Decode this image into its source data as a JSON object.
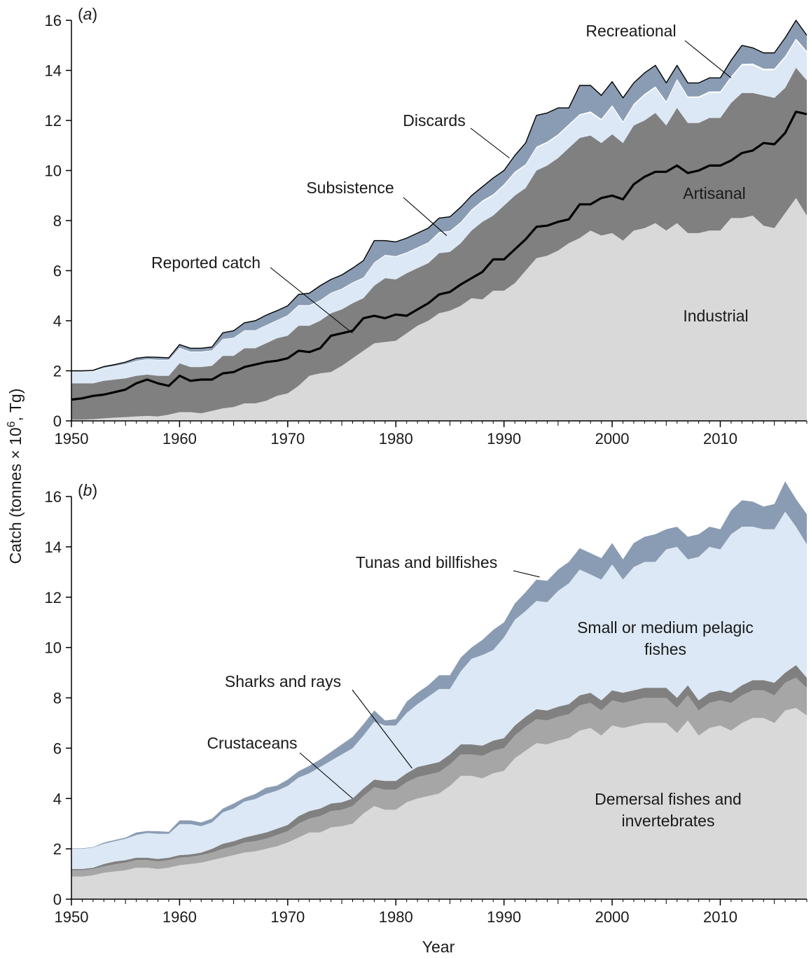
{
  "figure": {
    "ylabel_main": "Catch (tonnes × 10",
    "ylabel_sup": "6",
    "ylabel_tail": ", Tg)",
    "xlabel": "Year"
  },
  "chart_data": [
    {
      "type": "area",
      "stacked": true,
      "panel_open": "(",
      "panel_letter": "a",
      "panel_close": ")",
      "x": [
        1950,
        1951,
        1952,
        1953,
        1954,
        1955,
        1956,
        1957,
        1958,
        1959,
        1960,
        1961,
        1962,
        1963,
        1964,
        1965,
        1966,
        1967,
        1968,
        1969,
        1970,
        1971,
        1972,
        1973,
        1974,
        1975,
        1976,
        1977,
        1978,
        1979,
        1980,
        1981,
        1982,
        1983,
        1984,
        1985,
        1986,
        1987,
        1988,
        1989,
        1990,
        1991,
        1992,
        1993,
        1994,
        1995,
        1996,
        1997,
        1998,
        1999,
        2000,
        2001,
        2002,
        2003,
        2004,
        2005,
        2006,
        2007,
        2008,
        2009,
        2010,
        2011,
        2012,
        2013,
        2014,
        2015,
        2016,
        2017,
        2018
      ],
      "xlim": [
        1950,
        2018
      ],
      "ylim": [
        0,
        16
      ],
      "xticks": [
        1950,
        1960,
        1970,
        1980,
        1990,
        2000,
        2010
      ],
      "yticks": [
        0,
        2,
        4,
        6,
        8,
        10,
        12,
        14,
        16
      ],
      "series": [
        {
          "name": "Industrial",
          "color": "#d9d9d9",
          "values": [
            0.05,
            0.05,
            0.07,
            0.1,
            0.13,
            0.15,
            0.18,
            0.2,
            0.18,
            0.25,
            0.35,
            0.35,
            0.3,
            0.4,
            0.5,
            0.55,
            0.7,
            0.7,
            0.8,
            1.0,
            1.1,
            1.4,
            1.8,
            1.9,
            1.95,
            2.2,
            2.5,
            2.8,
            3.1,
            3.15,
            3.2,
            3.5,
            3.8,
            4.0,
            4.3,
            4.4,
            4.6,
            4.9,
            4.85,
            5.2,
            5.2,
            5.5,
            6.0,
            6.5,
            6.6,
            6.8,
            7.1,
            7.3,
            7.6,
            7.4,
            7.5,
            7.2,
            7.6,
            7.7,
            7.9,
            7.6,
            7.9,
            7.5,
            7.5,
            7.6,
            7.6,
            8.1,
            8.1,
            8.2,
            7.8,
            7.7,
            8.3,
            8.9,
            8.2
          ]
        },
        {
          "name": "Artisanal",
          "color": "#808080",
          "values": [
            1.45,
            1.45,
            1.43,
            1.5,
            1.52,
            1.55,
            1.62,
            1.65,
            1.62,
            1.55,
            1.95,
            1.8,
            1.85,
            1.8,
            2.1,
            2.05,
            2.2,
            2.2,
            2.3,
            2.3,
            2.3,
            2.4,
            2.0,
            2.1,
            2.35,
            2.25,
            2.2,
            2.1,
            2.3,
            2.55,
            2.45,
            2.4,
            2.3,
            2.3,
            2.4,
            2.35,
            2.5,
            2.7,
            3.1,
            3.0,
            3.4,
            3.5,
            3.3,
            3.5,
            3.6,
            3.7,
            3.8,
            4.0,
            3.8,
            3.7,
            3.95,
            3.9,
            4.2,
            4.3,
            4.4,
            4.2,
            4.6,
            4.4,
            4.4,
            4.5,
            4.5,
            4.6,
            5.0,
            4.9,
            5.2,
            5.2,
            5.0,
            5.2,
            5.4
          ]
        },
        {
          "name": "Subsistence",
          "color": "#dce8f5",
          "values": [
            0.45,
            0.45,
            0.47,
            0.5,
            0.52,
            0.55,
            0.58,
            0.6,
            0.62,
            0.62,
            0.6,
            0.6,
            0.6,
            0.6,
            0.65,
            0.7,
            0.7,
            0.7,
            0.7,
            0.7,
            0.8,
            0.8,
            0.8,
            0.8,
            0.8,
            0.8,
            0.8,
            0.8,
            0.9,
            0.9,
            0.9,
            0.8,
            0.8,
            0.8,
            0.8,
            0.8,
            0.8,
            0.8,
            0.8,
            0.8,
            0.8,
            0.9,
            0.9,
            0.9,
            0.9,
            0.9,
            0.9,
            0.9,
            0.9,
            0.9,
            1.1,
            0.8,
            0.8,
            1.0,
            1.0,
            0.9,
            1.1,
            1.0,
            1.0,
            1.0,
            1.0,
            1.0,
            1.1,
            1.1,
            1.0,
            1.1,
            1.2,
            1.1,
            1.1
          ]
        },
        {
          "name": "Recreational",
          "color": "#ffffff",
          "values": [
            0.02,
            0.02,
            0.02,
            0.02,
            0.02,
            0.02,
            0.02,
            0.02,
            0.02,
            0.02,
            0.02,
            0.02,
            0.02,
            0.02,
            0.02,
            0.02,
            0.02,
            0.02,
            0.02,
            0.02,
            0.02,
            0.02,
            0.02,
            0.02,
            0.02,
            0.03,
            0.03,
            0.03,
            0.03,
            0.03,
            0.03,
            0.03,
            0.03,
            0.03,
            0.04,
            0.04,
            0.04,
            0.04,
            0.05,
            0.05,
            0.05,
            0.05,
            0.05,
            0.05,
            0.05,
            0.05,
            0.05,
            0.05,
            0.06,
            0.06,
            0.06,
            0.06,
            0.06,
            0.06,
            0.06,
            0.06,
            0.06,
            0.06,
            0.06,
            0.06,
            0.06,
            0.06,
            0.06,
            0.07,
            0.07,
            0.07,
            0.07,
            0.07,
            0.07
          ]
        },
        {
          "name": "Discards",
          "color": "#8a9cb3",
          "values": [
            0.03,
            0.03,
            0.03,
            0.05,
            0.06,
            0.08,
            0.1,
            0.08,
            0.1,
            0.08,
            0.13,
            0.13,
            0.13,
            0.13,
            0.25,
            0.28,
            0.3,
            0.38,
            0.4,
            0.38,
            0.38,
            0.43,
            0.48,
            0.58,
            0.53,
            0.55,
            0.57,
            0.67,
            0.87,
            0.57,
            0.57,
            0.57,
            0.57,
            0.57,
            0.56,
            0.56,
            0.6,
            0.56,
            0.55,
            0.65,
            0.55,
            0.65,
            0.85,
            1.25,
            1.15,
            1.05,
            0.65,
            1.15,
            1.04,
            0.94,
            0.94,
            0.94,
            0.84,
            0.84,
            0.84,
            0.74,
            0.54,
            0.54,
            0.54,
            0.54,
            0.54,
            0.64,
            0.74,
            0.63,
            0.63,
            0.63,
            0.73,
            0.73,
            0.63
          ]
        }
      ],
      "reported_catch": {
        "name": "Reported catch",
        "values": [
          0.85,
          0.9,
          1.0,
          1.05,
          1.15,
          1.25,
          1.5,
          1.65,
          1.5,
          1.4,
          1.8,
          1.6,
          1.65,
          1.65,
          1.9,
          1.95,
          2.15,
          2.25,
          2.35,
          2.4,
          2.5,
          2.8,
          2.75,
          2.9,
          3.4,
          3.5,
          3.6,
          4.1,
          4.2,
          4.1,
          4.25,
          4.2,
          4.45,
          4.7,
          5.05,
          5.15,
          5.45,
          5.7,
          5.95,
          6.45,
          6.45,
          6.85,
          7.25,
          7.75,
          7.8,
          7.95,
          8.05,
          8.65,
          8.65,
          8.9,
          9.0,
          8.85,
          9.45,
          9.75,
          9.95,
          9.95,
          10.2,
          9.9,
          10.0,
          10.2,
          10.2,
          10.4,
          10.7,
          10.8,
          11.1,
          11.05,
          11.5,
          12.35,
          12.25
        ]
      },
      "annotations": [
        {
          "label": "Recreational",
          "x": 2011,
          "y": 13.7
        },
        {
          "label": "Discards",
          "x": 1990.5,
          "y": 10.5
        },
        {
          "label": "Subsistence",
          "x": 1984.7,
          "y": 7.4
        },
        {
          "label": "Reported catch",
          "x": 1976,
          "y": 3.5
        },
        {
          "label": "Artisanal",
          "x": 2010,
          "y": 9.4
        },
        {
          "label": "Industrial",
          "x": 2010,
          "y": 4.5
        }
      ]
    },
    {
      "type": "area",
      "stacked": true,
      "panel_open": "(",
      "panel_letter": "b",
      "panel_close": ")",
      "x": [
        1950,
        1951,
        1952,
        1953,
        1954,
        1955,
        1956,
        1957,
        1958,
        1959,
        1960,
        1961,
        1962,
        1963,
        1964,
        1965,
        1966,
        1967,
        1968,
        1969,
        1970,
        1971,
        1972,
        1973,
        1974,
        1975,
        1976,
        1977,
        1978,
        1979,
        1980,
        1981,
        1982,
        1983,
        1984,
        1985,
        1986,
        1987,
        1988,
        1989,
        1990,
        1991,
        1992,
        1993,
        1994,
        1995,
        1996,
        1997,
        1998,
        1999,
        2000,
        2001,
        2002,
        2003,
        2004,
        2005,
        2006,
        2007,
        2008,
        2009,
        2010,
        2011,
        2012,
        2013,
        2014,
        2015,
        2016,
        2017,
        2018
      ],
      "xlim": [
        1950,
        2018
      ],
      "ylim": [
        0,
        16
      ],
      "xticks": [
        1950,
        1960,
        1970,
        1980,
        1990,
        2000,
        2010
      ],
      "yticks": [
        0,
        2,
        4,
        6,
        8,
        10,
        12,
        14,
        16
      ],
      "xlabel": "Year",
      "series": [
        {
          "name": "Demersal fishes and invertebrates",
          "color": "#d9d9d9",
          "values": [
            0.9,
            0.9,
            0.95,
            1.05,
            1.1,
            1.15,
            1.25,
            1.25,
            1.2,
            1.25,
            1.35,
            1.4,
            1.45,
            1.55,
            1.65,
            1.75,
            1.85,
            1.9,
            2.0,
            2.1,
            2.25,
            2.45,
            2.65,
            2.65,
            2.85,
            2.9,
            3.0,
            3.4,
            3.7,
            3.55,
            3.55,
            3.85,
            4.0,
            4.1,
            4.2,
            4.5,
            4.9,
            4.9,
            4.8,
            5.0,
            5.1,
            5.6,
            5.9,
            6.2,
            6.15,
            6.3,
            6.4,
            6.7,
            6.8,
            6.5,
            6.9,
            6.8,
            6.9,
            7.0,
            7.0,
            7.0,
            6.6,
            7.1,
            6.5,
            6.8,
            6.9,
            6.7,
            7.0,
            7.2,
            7.2,
            7.0,
            7.5,
            7.6,
            7.3
          ]
        },
        {
          "name": "Crustaceans",
          "color": "#a6a6a6",
          "values": [
            0.25,
            0.25,
            0.25,
            0.25,
            0.28,
            0.3,
            0.3,
            0.3,
            0.3,
            0.3,
            0.3,
            0.28,
            0.3,
            0.3,
            0.35,
            0.35,
            0.4,
            0.4,
            0.4,
            0.45,
            0.45,
            0.55,
            0.55,
            0.65,
            0.65,
            0.65,
            0.7,
            0.7,
            0.75,
            0.8,
            0.8,
            0.8,
            0.85,
            0.85,
            0.85,
            0.85,
            0.85,
            0.85,
            0.9,
            0.9,
            0.9,
            0.9,
            0.95,
            0.95,
            0.95,
            0.95,
            0.95,
            1.0,
            1.0,
            1.0,
            1.0,
            1.0,
            1.0,
            1.0,
            1.0,
            1.0,
            1.0,
            1.0,
            1.0,
            1.0,
            1.0,
            1.1,
            1.1,
            1.1,
            1.1,
            1.1,
            1.1,
            1.2,
            1.1
          ]
        },
        {
          "name": "Sharks and rays",
          "color": "#808080",
          "values": [
            0.05,
            0.05,
            0.05,
            0.1,
            0.12,
            0.1,
            0.1,
            0.1,
            0.1,
            0.1,
            0.1,
            0.1,
            0.1,
            0.15,
            0.2,
            0.2,
            0.2,
            0.25,
            0.25,
            0.25,
            0.25,
            0.3,
            0.3,
            0.3,
            0.3,
            0.3,
            0.3,
            0.3,
            0.3,
            0.35,
            0.35,
            0.35,
            0.4,
            0.4,
            0.4,
            0.4,
            0.4,
            0.4,
            0.4,
            0.4,
            0.4,
            0.4,
            0.4,
            0.4,
            0.4,
            0.4,
            0.4,
            0.4,
            0.4,
            0.4,
            0.4,
            0.4,
            0.4,
            0.4,
            0.4,
            0.4,
            0.4,
            0.4,
            0.4,
            0.4,
            0.4,
            0.4,
            0.4,
            0.4,
            0.4,
            0.5,
            0.4,
            0.5,
            0.4
          ]
        },
        {
          "name": "Small or medium pelagic fishes",
          "color": "#dce8f5",
          "values": [
            0.8,
            0.8,
            0.8,
            0.8,
            0.8,
            0.85,
            0.9,
            0.98,
            1.0,
            0.95,
            1.23,
            1.2,
            1.05,
            1.05,
            1.25,
            1.3,
            1.43,
            1.43,
            1.53,
            1.51,
            1.55,
            1.53,
            1.5,
            1.65,
            1.7,
            1.9,
            2.0,
            2.1,
            2.3,
            2.2,
            2.2,
            2.4,
            2.5,
            2.7,
            2.9,
            2.6,
            2.9,
            3.4,
            3.6,
            3.6,
            4.0,
            4.2,
            4.2,
            4.3,
            4.3,
            4.6,
            4.8,
            5.0,
            4.7,
            4.8,
            5.0,
            4.5,
            4.9,
            5.0,
            5.0,
            5.5,
            6.0,
            5.0,
            5.7,
            5.8,
            5.6,
            6.3,
            6.3,
            6.1,
            6.0,
            6.1,
            6.4,
            5.5,
            5.3
          ]
        },
        {
          "name": "Tunas and billfishes",
          "color": "#8a9cb3",
          "values": [
            0.02,
            0.02,
            0.02,
            0.05,
            0.05,
            0.05,
            0.1,
            0.08,
            0.1,
            0.08,
            0.15,
            0.15,
            0.15,
            0.15,
            0.15,
            0.2,
            0.15,
            0.2,
            0.25,
            0.2,
            0.25,
            0.25,
            0.3,
            0.3,
            0.35,
            0.4,
            0.45,
            0.45,
            0.45,
            0.2,
            0.25,
            0.45,
            0.45,
            0.45,
            0.55,
            0.55,
            0.55,
            0.45,
            0.6,
            0.8,
            0.6,
            0.65,
            0.75,
            0.85,
            0.85,
            0.85,
            0.85,
            0.85,
            0.85,
            0.85,
            0.85,
            0.8,
            0.95,
            1.0,
            1.1,
            0.8,
            0.8,
            0.9,
            0.9,
            0.8,
            0.8,
            0.95,
            1.05,
            1.0,
            0.9,
            1.0,
            1.2,
            1.1,
            1.2
          ]
        }
      ],
      "annotations": [
        {
          "label": "Tunas and billfishes",
          "x": 1993.3,
          "y": 12.8
        },
        {
          "label": "Small or medium pelagic fishes",
          "x": 2005,
          "y": 10.8
        },
        {
          "label": "Sharks and rays",
          "x": 1981.5,
          "y": 5.2
        },
        {
          "label": "Crustaceans",
          "x": 1976,
          "y": 4.0
        },
        {
          "label": "Demersal fishes and invertebrates",
          "x": 2005,
          "y": 4.0
        }
      ]
    }
  ]
}
